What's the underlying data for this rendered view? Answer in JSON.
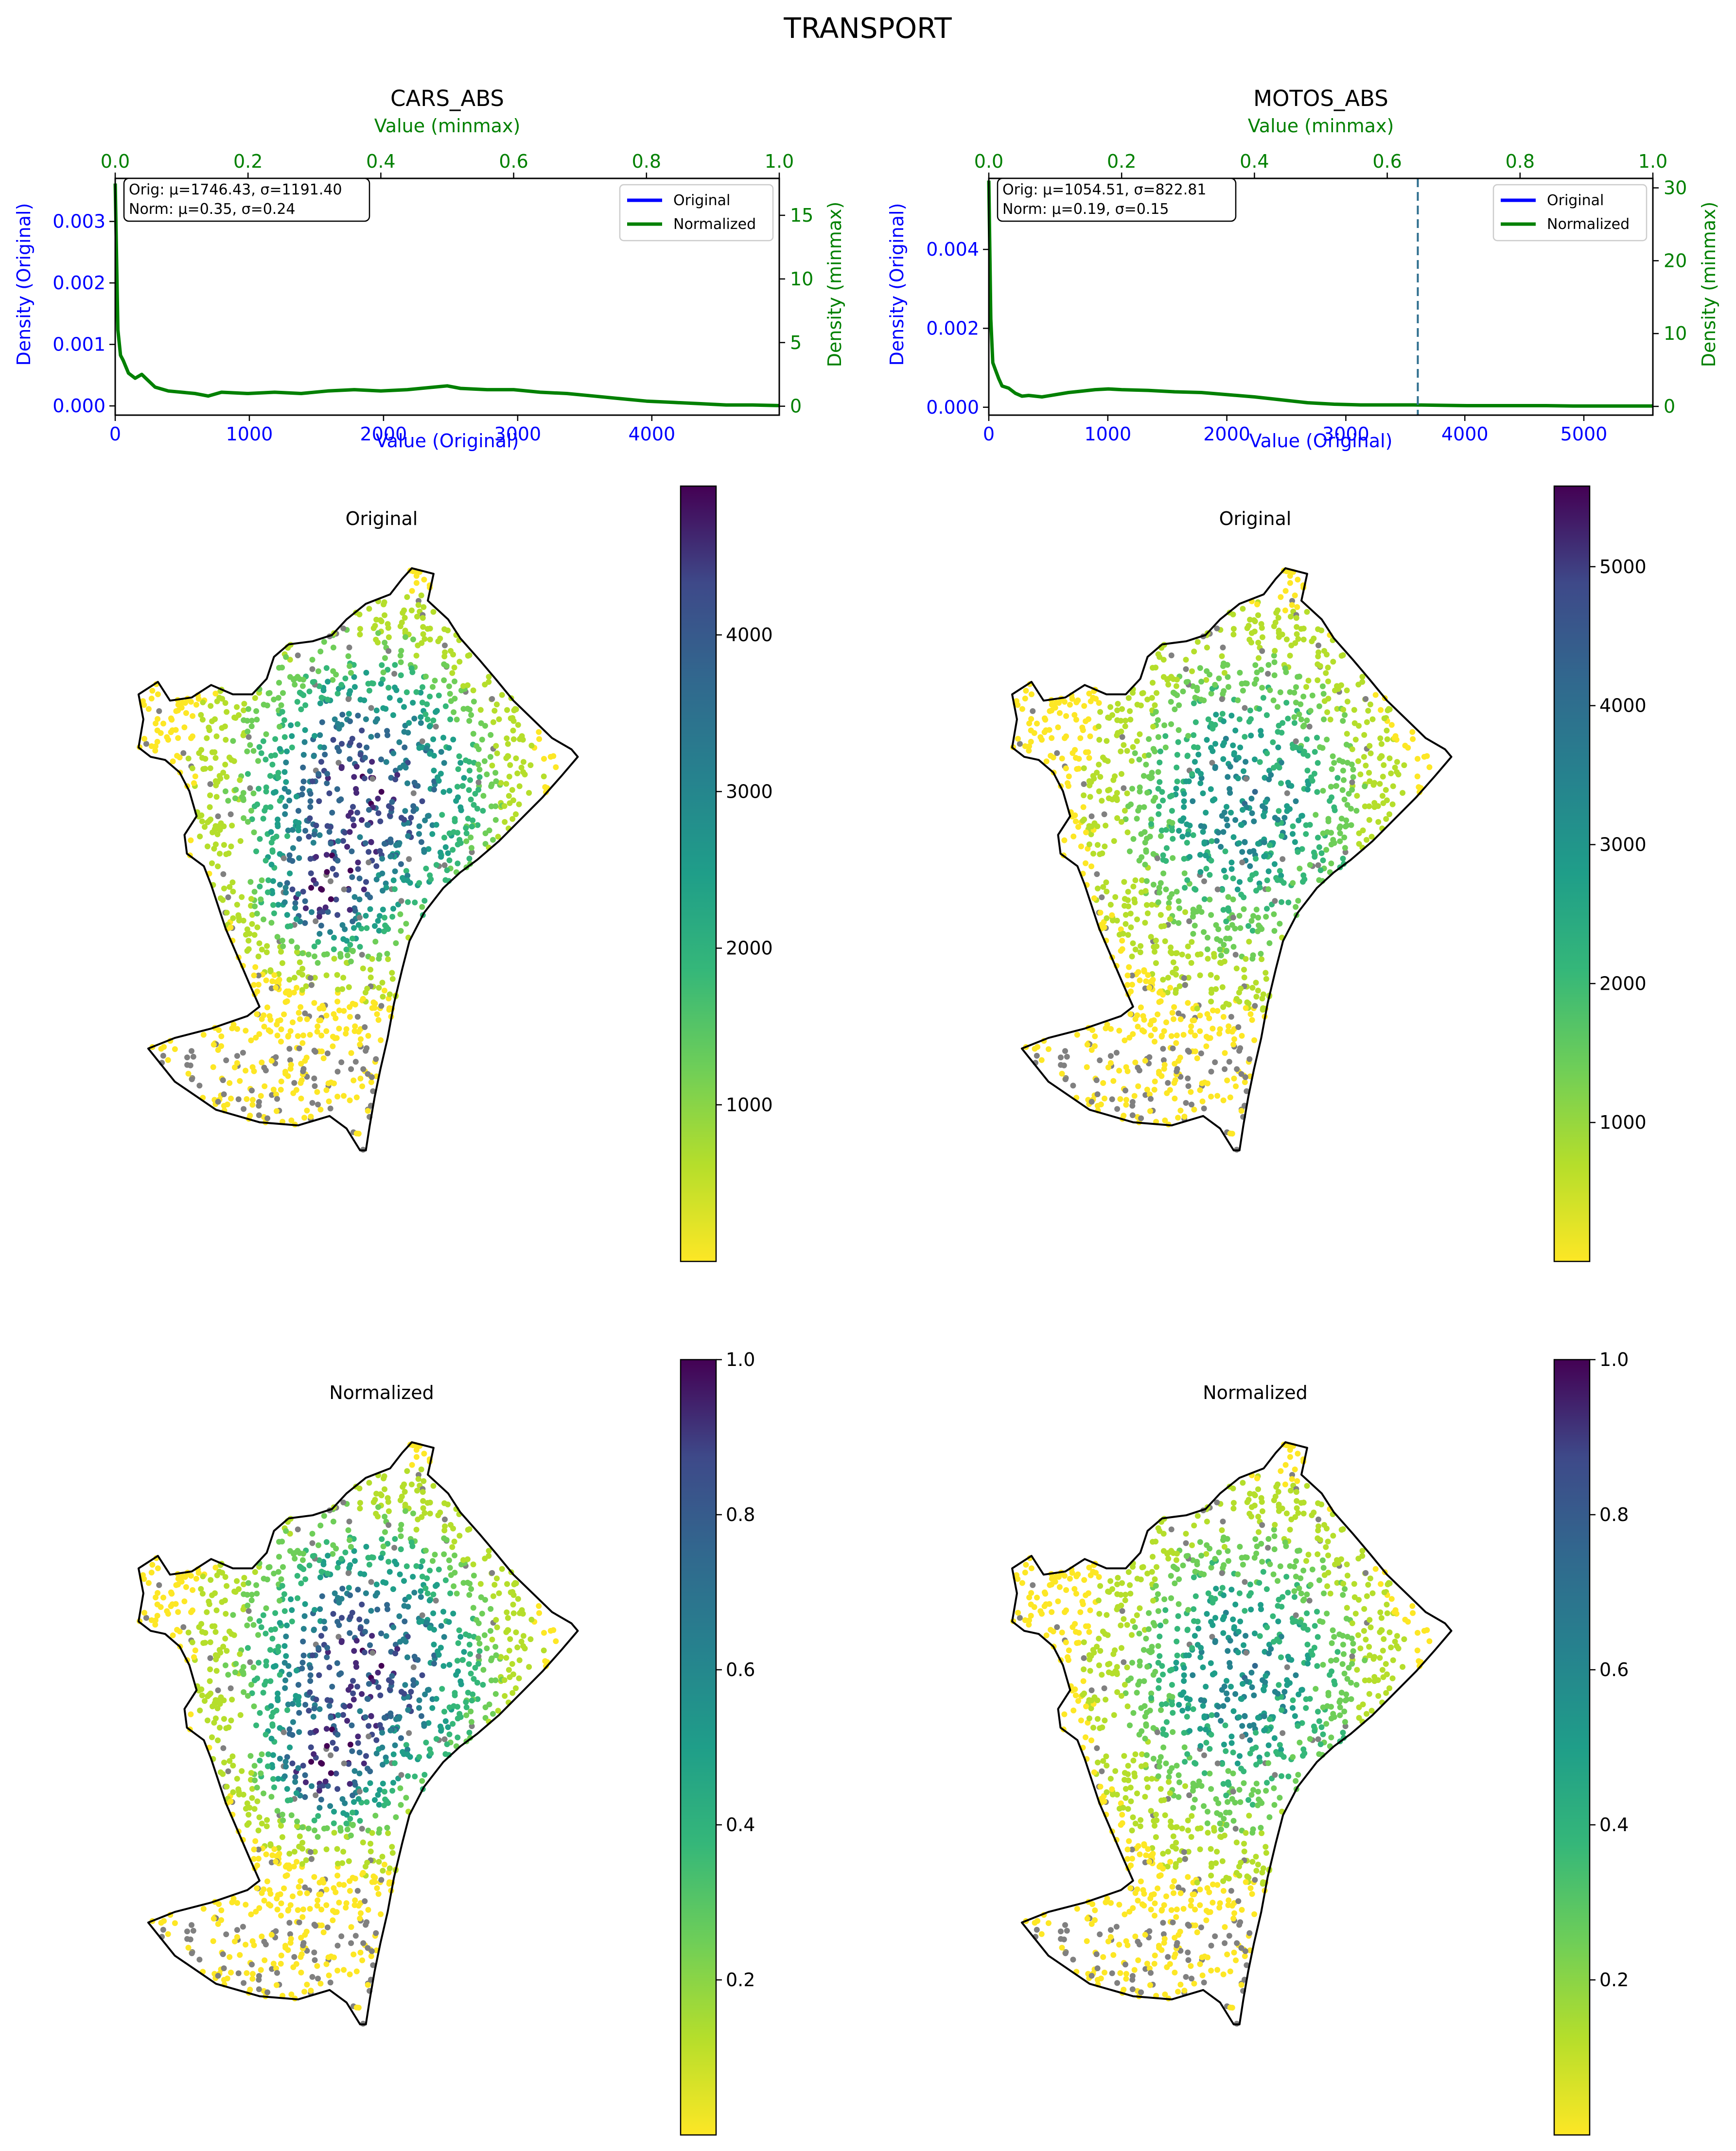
{
  "suptitle": "TRANSPORT",
  "colors": {
    "original": "#0000ff",
    "normalized": "#008000",
    "nodata": "#808080",
    "marker": "#2f6f8f"
  },
  "chart_data": [
    {
      "type": "line",
      "title": "CARS_ABS",
      "xlabel_bottom": "Value (Original)",
      "xlabel_top": "Value (minmax)",
      "ylabel_left": "Density (Original)",
      "ylabel_right": "Density (minmax)",
      "xlim_bottom": [
        0,
        4950
      ],
      "xlim_top": [
        0,
        1
      ],
      "ylim_left": [
        -0.00015,
        0.0037
      ],
      "ylim_right": [
        -0.7,
        17.9
      ],
      "xticks_bottom": [
        "0",
        "1000",
        "2000",
        "3000",
        "4000"
      ],
      "xticks_top": [
        "0.0",
        "0.2",
        "0.4",
        "0.6",
        "0.8",
        "1.0"
      ],
      "yticks_left": [
        "0.000",
        "0.001",
        "0.002",
        "0.003"
      ],
      "yticks_right": [
        "0",
        "5",
        "10",
        "15"
      ],
      "stats_text": [
        "Orig: μ=1746.43, σ=1191.40",
        "Norm: μ=0.35, σ=0.24"
      ],
      "legend": [
        "Original",
        "Normalized"
      ],
      "legend_loc": "upper right",
      "vline": null,
      "series_normalized": {
        "name": "Normalized",
        "x": [
          0,
          0.004,
          0.008,
          0.012,
          0.02,
          0.03,
          0.04,
          0.05,
          0.06,
          0.08,
          0.1,
          0.12,
          0.14,
          0.16,
          0.2,
          0.24,
          0.28,
          0.32,
          0.36,
          0.4,
          0.44,
          0.48,
          0.5,
          0.52,
          0.56,
          0.6,
          0.64,
          0.68,
          0.72,
          0.76,
          0.8,
          0.84,
          0.88,
          0.92,
          0.96,
          1.0
        ],
        "y": [
          17.5,
          6.0,
          4.0,
          3.6,
          2.6,
          2.2,
          2.5,
          2.0,
          1.5,
          1.2,
          1.1,
          1.0,
          0.8,
          1.1,
          1.0,
          1.1,
          1.0,
          1.2,
          1.3,
          1.2,
          1.3,
          1.5,
          1.6,
          1.4,
          1.3,
          1.3,
          1.1,
          1.0,
          0.8,
          0.6,
          0.4,
          0.3,
          0.2,
          0.1,
          0.1,
          0.05
        ]
      }
    },
    {
      "type": "line",
      "title": "MOTOS_ABS",
      "xlabel_bottom": "Value (Original)",
      "xlabel_top": "Value (minmax)",
      "ylabel_left": "Density (Original)",
      "ylabel_right": "Density (minmax)",
      "xlim_bottom": [
        0,
        5580
      ],
      "xlim_top": [
        0,
        1
      ],
      "ylim_left": [
        -0.0002,
        0.0058
      ],
      "ylim_right": [
        -1.2,
        31.3
      ],
      "xticks_bottom": [
        "0",
        "1000",
        "2000",
        "3000",
        "4000",
        "5000"
      ],
      "xticks_top": [
        "0.0",
        "0.2",
        "0.4",
        "0.6",
        "0.8",
        "1.0"
      ],
      "yticks_left": [
        "0.000",
        "0.002",
        "0.004"
      ],
      "yticks_right": [
        "0",
        "10",
        "20",
        "30"
      ],
      "stats_text": [
        "Orig: μ=1054.51, σ=822.81",
        "Norm: μ=0.19, σ=0.15"
      ],
      "legend": [
        "Original",
        "Normalized"
      ],
      "legend_loc": "upper right",
      "vline": 0.646,
      "series_normalized": {
        "name": "Normalized",
        "x": [
          0,
          0.003,
          0.006,
          0.01,
          0.015,
          0.02,
          0.03,
          0.04,
          0.05,
          0.06,
          0.08,
          0.1,
          0.12,
          0.14,
          0.16,
          0.18,
          0.2,
          0.24,
          0.28,
          0.32,
          0.36,
          0.4,
          0.44,
          0.48,
          0.52,
          0.56,
          0.6,
          0.64,
          0.68,
          0.72,
          0.76,
          0.8,
          0.84,
          0.88,
          0.92,
          0.96,
          1.0
        ],
        "y": [
          31.0,
          12.0,
          6.0,
          5.0,
          3.8,
          2.8,
          2.5,
          1.8,
          1.4,
          1.5,
          1.3,
          1.6,
          1.9,
          2.1,
          2.3,
          2.4,
          2.3,
          2.2,
          2.0,
          1.9,
          1.6,
          1.3,
          0.9,
          0.5,
          0.3,
          0.2,
          0.2,
          0.2,
          0.15,
          0.1,
          0.1,
          0.1,
          0.1,
          0.05,
          0.05,
          0.05,
          0.05
        ]
      }
    },
    {
      "type": "map",
      "title": "Original",
      "colormap": "viridis_r",
      "colorbar_ticks": [
        "1000",
        "2000",
        "3000",
        "4000"
      ],
      "colorbar_tick_values": [
        1000,
        2000,
        3000,
        4000
      ],
      "colorbar_range": [
        0,
        4950
      ]
    },
    {
      "type": "map",
      "title": "Original",
      "colormap": "viridis_r",
      "colorbar_ticks": [
        "1000",
        "2000",
        "3000",
        "4000",
        "5000"
      ],
      "colorbar_tick_values": [
        1000,
        2000,
        3000,
        4000,
        5000
      ],
      "colorbar_range": [
        0,
        5580
      ]
    },
    {
      "type": "map",
      "title": "Normalized",
      "colormap": "viridis_r",
      "colorbar_ticks": [
        "0.2",
        "0.4",
        "0.6",
        "0.8",
        "1.0"
      ],
      "colorbar_tick_values": [
        0.2,
        0.4,
        0.6,
        0.8,
        1.0
      ],
      "colorbar_range": [
        0,
        1
      ]
    },
    {
      "type": "map",
      "title": "Normalized",
      "colormap": "viridis_r",
      "colorbar_ticks": [
        "0.2",
        "0.4",
        "0.6",
        "0.8",
        "1.0"
      ],
      "colorbar_tick_values": [
        0.2,
        0.4,
        0.6,
        0.8,
        1.0
      ],
      "colorbar_range": [
        0,
        1
      ]
    }
  ]
}
